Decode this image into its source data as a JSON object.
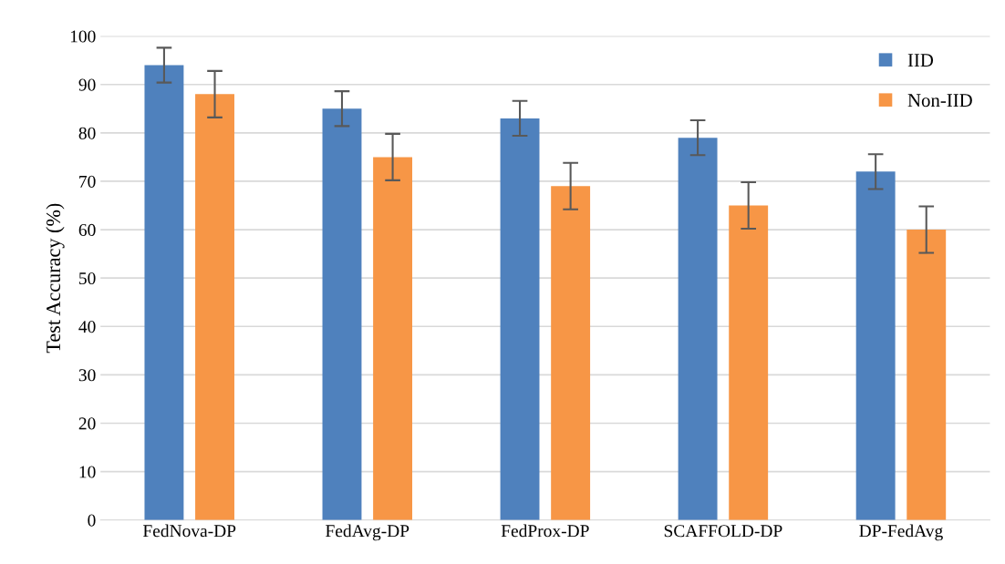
{
  "chart_data": {
    "type": "bar",
    "ylabel": "Test Accuracy (%)",
    "categories": [
      "FedNova-DP",
      "FedAvg-DP",
      "FedProx-DP",
      "SCAFFOLD-DP",
      "DP-FedAvg"
    ],
    "series": [
      {
        "name": "IID",
        "color": "#4f81bd",
        "values": [
          94,
          85,
          83,
          79,
          72
        ],
        "errors": [
          3.6,
          3.6,
          3.6,
          3.6,
          3.6
        ]
      },
      {
        "name": "Non-IID",
        "color": "#f79646",
        "values": [
          88,
          75,
          69,
          65,
          60
        ],
        "errors": [
          4.8,
          4.8,
          4.8,
          4.8,
          4.8
        ]
      }
    ],
    "ylim": [
      0,
      100
    ],
    "yticks": [
      0,
      10,
      20,
      30,
      40,
      50,
      60,
      70,
      80,
      90,
      100
    ],
    "grid": "y",
    "legend": "top right"
  }
}
